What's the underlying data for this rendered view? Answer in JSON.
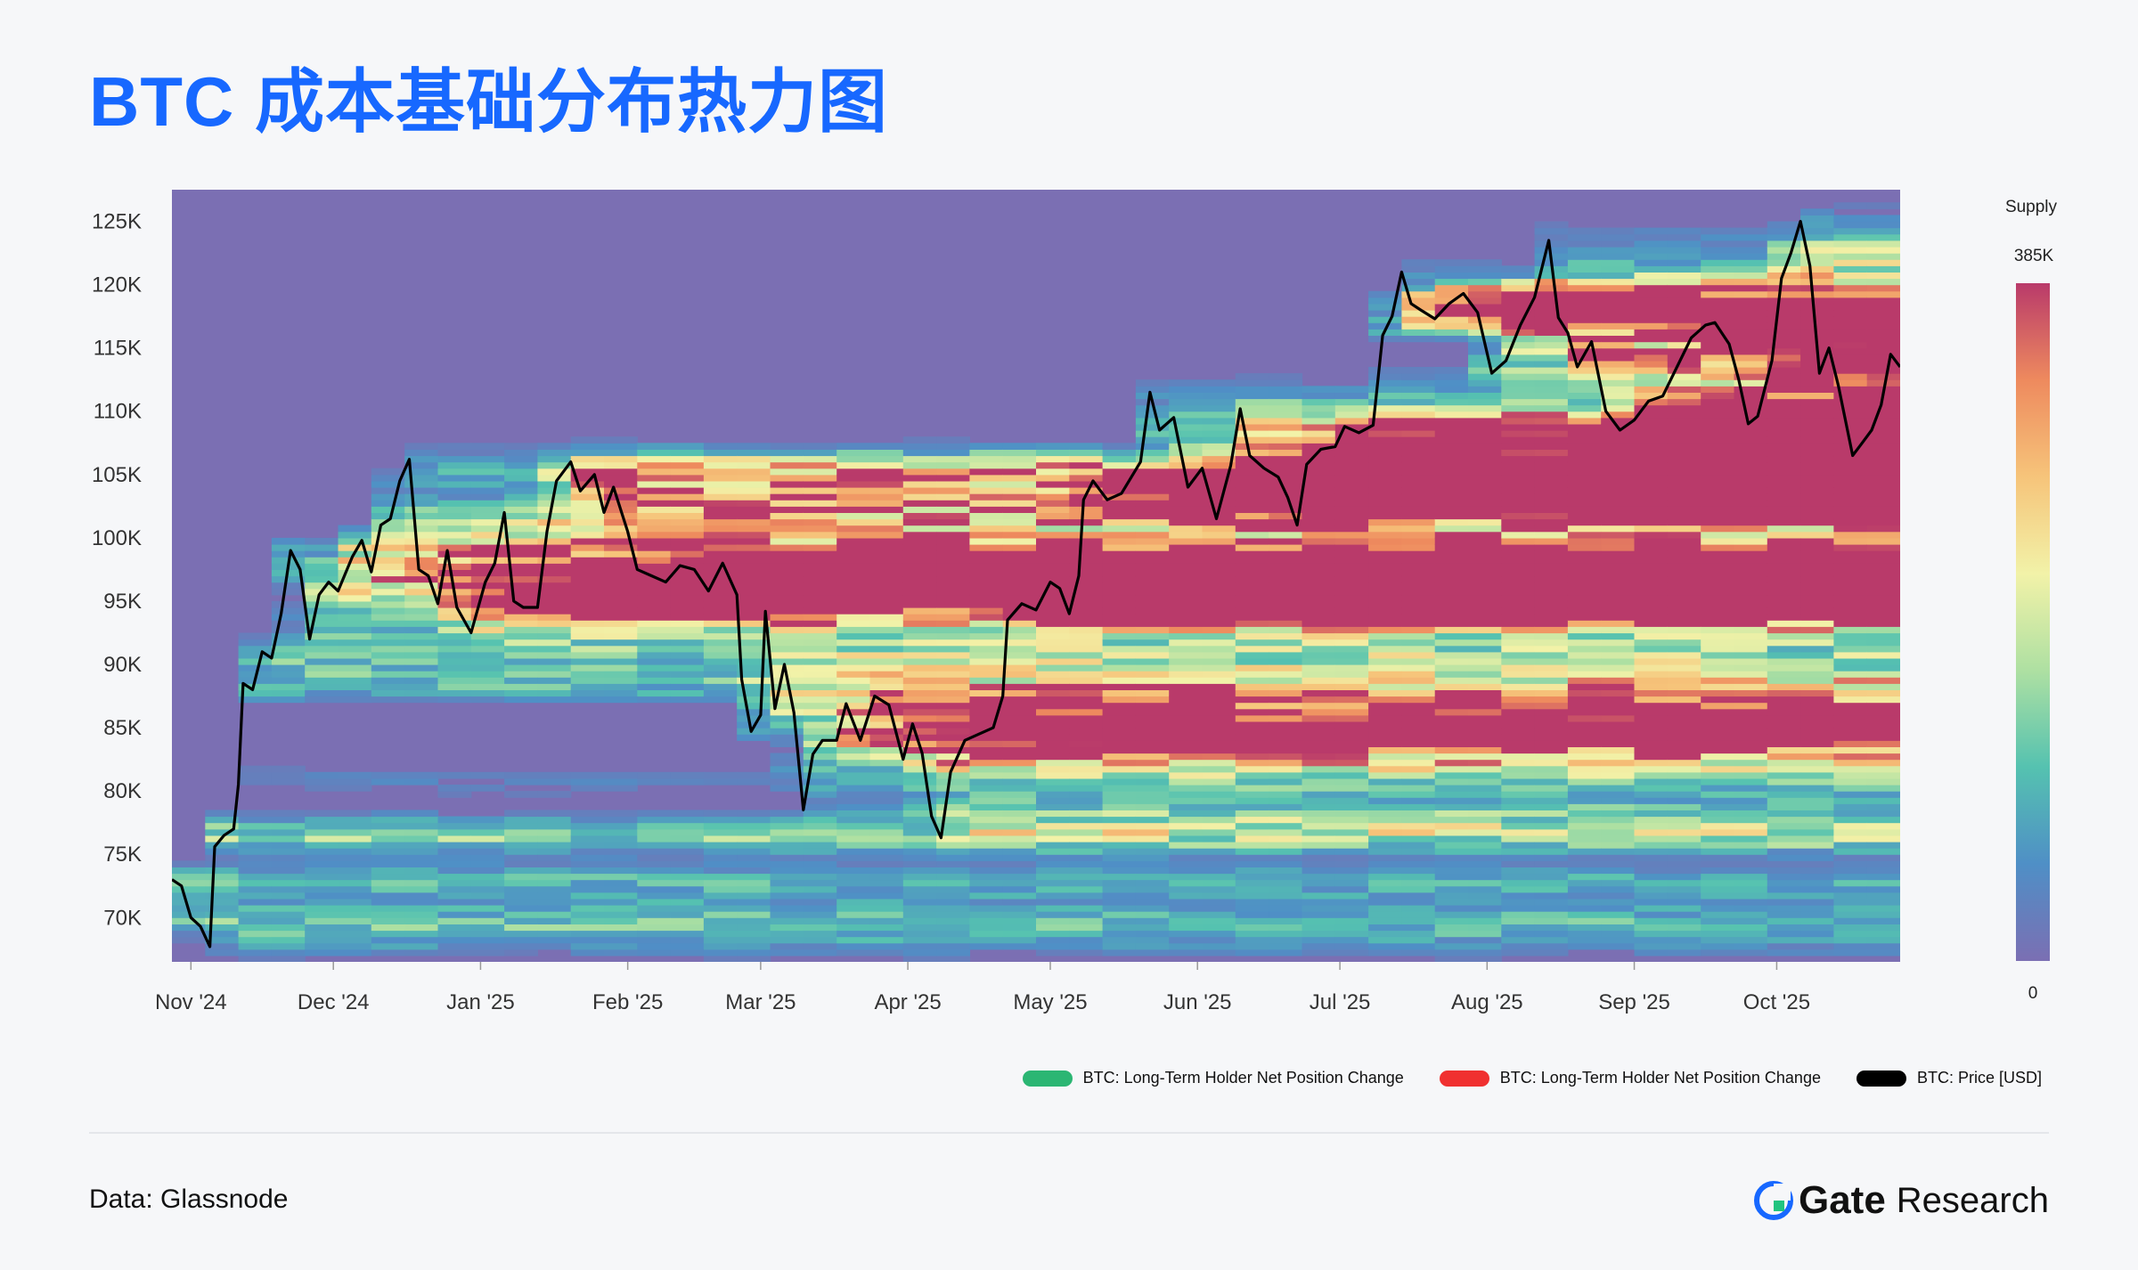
{
  "title": "BTC 成本基础分布热力图",
  "source": "Data: Glassnode",
  "brand": {
    "name": "Gate",
    "sub": "Research"
  },
  "colorbar": {
    "title": "Supply",
    "max_label": "385K",
    "min_label": "0"
  },
  "legend": [
    {
      "label": "BTC: Long-Term Holder Net Position Change",
      "color": "#2bb673"
    },
    {
      "label": "BTC: Long-Term Holder Net Position Change",
      "color": "#f03030"
    },
    {
      "label": "BTC: Price [USD]",
      "color": "#000000"
    }
  ],
  "chart_data": {
    "type": "heatmap",
    "x_ticks": [
      "Nov '24",
      "Dec '24",
      "Jan '25",
      "Feb '25",
      "Mar '25",
      "Apr '25",
      "May '25",
      "Jun '25",
      "Jul '25",
      "Aug '25",
      "Sep '25",
      "Oct '25"
    ],
    "x_tick_dates": [
      "2024-11-01",
      "2024-12-01",
      "2025-01-01",
      "2025-02-01",
      "2025-03-01",
      "2025-04-01",
      "2025-05-01",
      "2025-06-01",
      "2025-07-01",
      "2025-08-01",
      "2025-09-01",
      "2025-10-01"
    ],
    "x_range": [
      "2024-10-28",
      "2025-10-27"
    ],
    "y_ticks": [
      70000,
      75000,
      80000,
      85000,
      90000,
      95000,
      100000,
      105000,
      110000,
      115000,
      120000,
      125000
    ],
    "y_tick_labels": [
      "70K",
      "75K",
      "80K",
      "85K",
      "90K",
      "95K",
      "100K",
      "105K",
      "110K",
      "115K",
      "120K",
      "125K"
    ],
    "ylim": [
      66500,
      127500
    ],
    "supply_range": [
      0,
      385000
    ],
    "colorscale": [
      "#7b6fb3",
      "#4f8fc6",
      "#55c2b0",
      "#aee0a2",
      "#f2f2a8",
      "#f6c47a",
      "#ee8a5e",
      "#b93a6a"
    ],
    "price_series": {
      "name": "BTC: Price [USD]",
      "points": [
        [
          "2024-10-28",
          73000
        ],
        [
          "2024-10-30",
          72500
        ],
        [
          "2024-11-01",
          70000
        ],
        [
          "2024-11-03",
          69300
        ],
        [
          "2024-11-05",
          67700
        ],
        [
          "2024-11-06",
          75600
        ],
        [
          "2024-11-08",
          76500
        ],
        [
          "2024-11-10",
          77000
        ],
        [
          "2024-11-11",
          80500
        ],
        [
          "2024-11-12",
          88500
        ],
        [
          "2024-11-14",
          88000
        ],
        [
          "2024-11-16",
          91000
        ],
        [
          "2024-11-18",
          90500
        ],
        [
          "2024-11-20",
          94000
        ],
        [
          "2024-11-22",
          99000
        ],
        [
          "2024-11-24",
          97500
        ],
        [
          "2024-11-26",
          92000
        ],
        [
          "2024-11-28",
          95500
        ],
        [
          "2024-11-30",
          96500
        ],
        [
          "2024-12-02",
          95800
        ],
        [
          "2024-12-05",
          98500
        ],
        [
          "2024-12-07",
          99800
        ],
        [
          "2024-12-09",
          97300
        ],
        [
          "2024-12-11",
          101000
        ],
        [
          "2024-12-13",
          101500
        ],
        [
          "2024-12-15",
          104500
        ],
        [
          "2024-12-17",
          106200
        ],
        [
          "2024-12-19",
          97500
        ],
        [
          "2024-12-21",
          97000
        ],
        [
          "2024-12-23",
          94800
        ],
        [
          "2024-12-25",
          99000
        ],
        [
          "2024-12-27",
          94500
        ],
        [
          "2024-12-30",
          92500
        ],
        [
          "2025-01-02",
          96500
        ],
        [
          "2025-01-04",
          98000
        ],
        [
          "2025-01-06",
          102000
        ],
        [
          "2025-01-08",
          95000
        ],
        [
          "2025-01-10",
          94500
        ],
        [
          "2025-01-13",
          94500
        ],
        [
          "2025-01-15",
          100500
        ],
        [
          "2025-01-17",
          104500
        ],
        [
          "2025-01-20",
          106000
        ],
        [
          "2025-01-22",
          103700
        ],
        [
          "2025-01-25",
          105000
        ],
        [
          "2025-01-27",
          102000
        ],
        [
          "2025-01-29",
          104000
        ],
        [
          "2025-02-01",
          100500
        ],
        [
          "2025-02-03",
          97500
        ],
        [
          "2025-02-06",
          97000
        ],
        [
          "2025-02-09",
          96500
        ],
        [
          "2025-02-12",
          97800
        ],
        [
          "2025-02-15",
          97500
        ],
        [
          "2025-02-18",
          95800
        ],
        [
          "2025-02-21",
          98000
        ],
        [
          "2025-02-24",
          95500
        ],
        [
          "2025-02-25",
          88800
        ],
        [
          "2025-02-27",
          84700
        ],
        [
          "2025-03-01",
          86000
        ],
        [
          "2025-03-02",
          94200
        ],
        [
          "2025-03-04",
          86500
        ],
        [
          "2025-03-06",
          90000
        ],
        [
          "2025-03-08",
          86200
        ],
        [
          "2025-03-10",
          78500
        ],
        [
          "2025-03-12",
          82900
        ],
        [
          "2025-03-14",
          84000
        ],
        [
          "2025-03-17",
          84000
        ],
        [
          "2025-03-19",
          86900
        ],
        [
          "2025-03-22",
          84000
        ],
        [
          "2025-03-25",
          87500
        ],
        [
          "2025-03-28",
          86800
        ],
        [
          "2025-03-31",
          82500
        ],
        [
          "2025-04-02",
          85300
        ],
        [
          "2025-04-04",
          83000
        ],
        [
          "2025-04-06",
          78000
        ],
        [
          "2025-04-08",
          76300
        ],
        [
          "2025-04-10",
          81500
        ],
        [
          "2025-04-13",
          84000
        ],
        [
          "2025-04-16",
          84500
        ],
        [
          "2025-04-19",
          85000
        ],
        [
          "2025-04-21",
          87500
        ],
        [
          "2025-04-22",
          93500
        ],
        [
          "2025-04-25",
          94800
        ],
        [
          "2025-04-28",
          94300
        ],
        [
          "2025-05-01",
          96500
        ],
        [
          "2025-05-03",
          96000
        ],
        [
          "2025-05-05",
          94000
        ],
        [
          "2025-05-07",
          97000
        ],
        [
          "2025-05-08",
          103000
        ],
        [
          "2025-05-10",
          104500
        ],
        [
          "2025-05-13",
          103000
        ],
        [
          "2025-05-16",
          103500
        ],
        [
          "2025-05-20",
          106000
        ],
        [
          "2025-05-22",
          111500
        ],
        [
          "2025-05-24",
          108500
        ],
        [
          "2025-05-27",
          109500
        ],
        [
          "2025-05-30",
          104000
        ],
        [
          "2025-06-02",
          105500
        ],
        [
          "2025-06-05",
          101500
        ],
        [
          "2025-06-08",
          105700
        ],
        [
          "2025-06-10",
          110200
        ],
        [
          "2025-06-12",
          106500
        ],
        [
          "2025-06-15",
          105500
        ],
        [
          "2025-06-18",
          104800
        ],
        [
          "2025-06-20",
          103200
        ],
        [
          "2025-06-22",
          101000
        ],
        [
          "2025-06-24",
          105800
        ],
        [
          "2025-06-27",
          107000
        ],
        [
          "2025-06-30",
          107200
        ],
        [
          "2025-07-02",
          108800
        ],
        [
          "2025-07-05",
          108300
        ],
        [
          "2025-07-08",
          108900
        ],
        [
          "2025-07-10",
          116000
        ],
        [
          "2025-07-12",
          117500
        ],
        [
          "2025-07-14",
          121000
        ],
        [
          "2025-07-16",
          118500
        ],
        [
          "2025-07-18",
          118000
        ],
        [
          "2025-07-21",
          117300
        ],
        [
          "2025-07-24",
          118500
        ],
        [
          "2025-07-27",
          119300
        ],
        [
          "2025-07-30",
          117800
        ],
        [
          "2025-08-02",
          113000
        ],
        [
          "2025-08-05",
          114000
        ],
        [
          "2025-08-08",
          116800
        ],
        [
          "2025-08-11",
          119000
        ],
        [
          "2025-08-14",
          123500
        ],
        [
          "2025-08-16",
          117400
        ],
        [
          "2025-08-18",
          116200
        ],
        [
          "2025-08-20",
          113500
        ],
        [
          "2025-08-23",
          115500
        ],
        [
          "2025-08-26",
          110000
        ],
        [
          "2025-08-29",
          108500
        ],
        [
          "2025-09-01",
          109300
        ],
        [
          "2025-09-04",
          110800
        ],
        [
          "2025-09-07",
          111200
        ],
        [
          "2025-09-10",
          113500
        ],
        [
          "2025-09-13",
          115800
        ],
        [
          "2025-09-16",
          116800
        ],
        [
          "2025-09-18",
          117000
        ],
        [
          "2025-09-21",
          115300
        ],
        [
          "2025-09-23",
          112500
        ],
        [
          "2025-09-25",
          109000
        ],
        [
          "2025-09-27",
          109600
        ],
        [
          "2025-09-30",
          114000
        ],
        [
          "2025-10-02",
          120500
        ],
        [
          "2025-10-04",
          122500
        ],
        [
          "2025-10-06",
          125000
        ],
        [
          "2025-10-08",
          121500
        ],
        [
          "2025-10-10",
          113000
        ],
        [
          "2025-10-12",
          115000
        ],
        [
          "2025-10-14",
          112000
        ],
        [
          "2025-10-17",
          106500
        ],
        [
          "2025-10-19",
          107500
        ],
        [
          "2025-10-21",
          108500
        ],
        [
          "2025-10-23",
          110500
        ],
        [
          "2025-10-25",
          114500
        ],
        [
          "2025-10-27",
          113500
        ]
      ]
    }
  }
}
